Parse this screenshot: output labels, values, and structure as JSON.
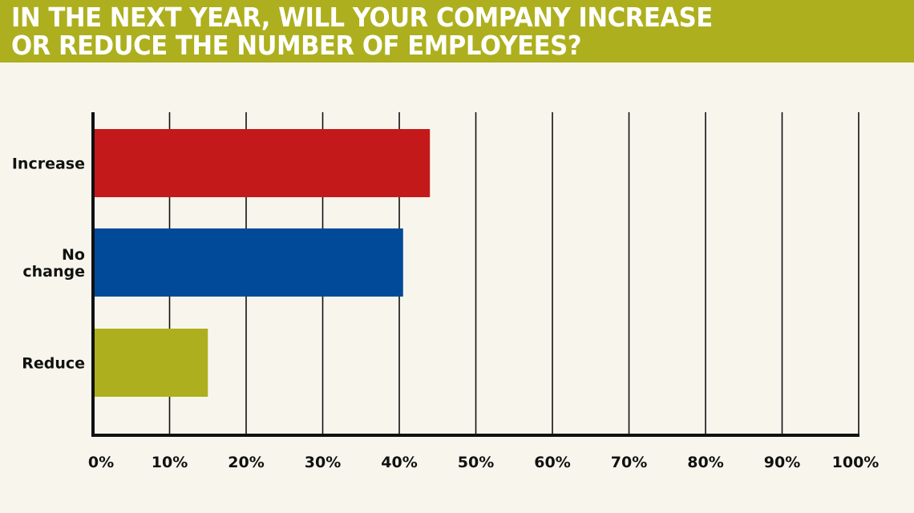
{
  "header": {
    "title_lines": [
      "IN THE NEXT YEAR, WILL YOUR COMPANY INCREASE",
      "OR REDUCE THE NUMBER OF EMPLOYEES?"
    ]
  },
  "colors": {
    "header_bg": "#adaf1e",
    "background": "#f8f6ec",
    "increase": "#c4191b",
    "no_change": "#004a99",
    "reduce": "#adaf1e"
  },
  "chart_data": {
    "type": "bar",
    "orientation": "horizontal",
    "title": "IN THE NEXT YEAR, WILL YOUR COMPANY INCREASE OR REDUCE THE NUMBER OF EMPLOYEES?",
    "categories": [
      {
        "lines": [
          "Increase"
        ]
      },
      {
        "lines": [
          "No",
          "change"
        ]
      },
      {
        "lines": [
          "Reduce"
        ]
      }
    ],
    "values": [
      44,
      40.5,
      15
    ],
    "bar_colors": [
      "#c4191b",
      "#004a99",
      "#adaf1e"
    ],
    "xlim": [
      0,
      100
    ],
    "x_ticks": [
      "0%",
      "10%",
      "20%",
      "30%",
      "40%",
      "50%",
      "60%",
      "70%",
      "80%",
      "90%",
      "100%"
    ],
    "grid": true,
    "legend": "none"
  }
}
